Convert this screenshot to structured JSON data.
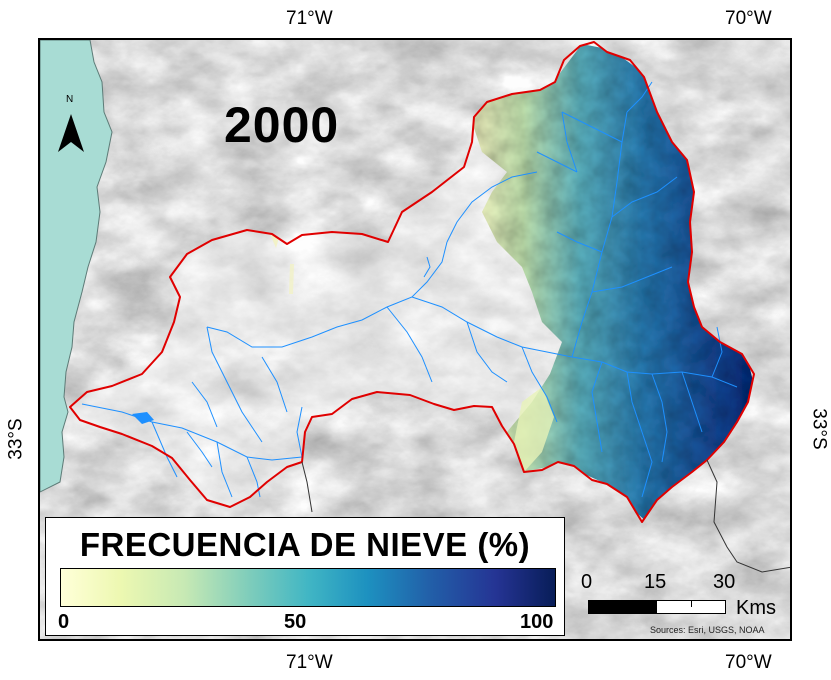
{
  "title_year": "2000",
  "north_label": "N",
  "coords": {
    "lon_left_top": "71°W",
    "lon_right_top": "70°W",
    "lon_left_bottom": "71°W",
    "lon_right_bottom": "70°W",
    "lat_left": "33°S",
    "lat_right": "33°S"
  },
  "legend": {
    "title": "FRECUENCIA DE NIEVE (%)",
    "min_label": "0",
    "mid_label": "50",
    "max_label": "100",
    "colors": [
      "#ffffd9",
      "#edf8b1",
      "#c7e9b4",
      "#7fcdbb",
      "#41b6c4",
      "#1d91c0",
      "#225ea8",
      "#253494",
      "#081d58"
    ]
  },
  "scale": {
    "t0": "0",
    "t15": "15",
    "t30": "30",
    "unit": "Kms"
  },
  "sources": "Sources: Esri, USGS, NOAA",
  "colors": {
    "ocean": "#a8dcd4",
    "basin_outline": "#e00000",
    "rivers": "#1e90ff",
    "terrain": "#dedede"
  }
}
